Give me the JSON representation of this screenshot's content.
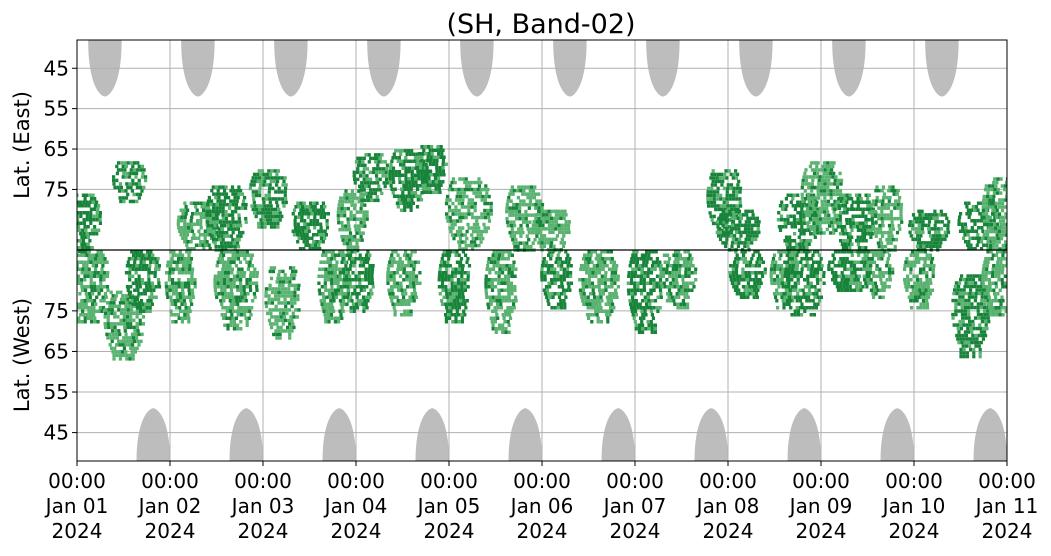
{
  "chart_data": {
    "type": "heatmap",
    "title": "(SH, Band-02)",
    "xlabel": "",
    "ylabel_top": "Lat. (East)",
    "ylabel_bottom": "Lat. (West)",
    "x_range": [
      "2024-01-01 00:00",
      "2024-01-11 00:00"
    ],
    "x_ticks": [
      {
        "time": "00:00",
        "date": "Jan 01",
        "year": "2024"
      },
      {
        "time": "00:00",
        "date": "Jan 02",
        "year": "2024"
      },
      {
        "time": "00:00",
        "date": "Jan 03",
        "year": "2024"
      },
      {
        "time": "00:00",
        "date": "Jan 04",
        "year": "2024"
      },
      {
        "time": "00:00",
        "date": "Jan 05",
        "year": "2024"
      },
      {
        "time": "00:00",
        "date": "Jan 06",
        "year": "2024"
      },
      {
        "time": "00:00",
        "date": "Jan 07",
        "year": "2024"
      },
      {
        "time": "00:00",
        "date": "Jan 08",
        "year": "2024"
      },
      {
        "time": "00:00",
        "date": "Jan 09",
        "year": "2024"
      },
      {
        "time": "00:00",
        "date": "Jan 10",
        "year": "2024"
      },
      {
        "time": "00:00",
        "date": "Jan 11",
        "year": "2024"
      }
    ],
    "y_ticks_east": [
      "45",
      "55",
      "65",
      "75"
    ],
    "y_ticks_west": [
      "75",
      "65",
      "55",
      "45"
    ],
    "y_range": {
      "east": [
        38,
        90
      ],
      "west": [
        90,
        38
      ]
    },
    "grid": true,
    "colors": {
      "background_shade": "#bdbdbd",
      "green_light": "#59b26f",
      "green_dark": "#17843a",
      "grid": "#b0b0b0",
      "divider": "#000000"
    },
    "shaded_regions_east": [
      {
        "center_day": 0.3,
        "half_width_days": 0.18,
        "min_lat": 52
      },
      {
        "center_day": 1.3,
        "half_width_days": 0.18,
        "min_lat": 52
      },
      {
        "center_day": 2.3,
        "half_width_days": 0.18,
        "min_lat": 52
      },
      {
        "center_day": 3.3,
        "half_width_days": 0.18,
        "min_lat": 52
      },
      {
        "center_day": 4.3,
        "half_width_days": 0.18,
        "min_lat": 52
      },
      {
        "center_day": 5.3,
        "half_width_days": 0.18,
        "min_lat": 52
      },
      {
        "center_day": 6.3,
        "half_width_days": 0.18,
        "min_lat": 52
      },
      {
        "center_day": 7.3,
        "half_width_days": 0.18,
        "min_lat": 52
      },
      {
        "center_day": 8.3,
        "half_width_days": 0.18,
        "min_lat": 52
      },
      {
        "center_day": 9.3,
        "half_width_days": 0.18,
        "min_lat": 52
      }
    ],
    "shaded_regions_west": [
      {
        "center_day": 0.82,
        "half_width_days": 0.18,
        "min_lat": 51
      },
      {
        "center_day": 1.82,
        "half_width_days": 0.18,
        "min_lat": 51
      },
      {
        "center_day": 2.82,
        "half_width_days": 0.18,
        "min_lat": 51
      },
      {
        "center_day": 3.82,
        "half_width_days": 0.18,
        "min_lat": 51
      },
      {
        "center_day": 4.82,
        "half_width_days": 0.18,
        "min_lat": 51
      },
      {
        "center_day": 5.82,
        "half_width_days": 0.18,
        "min_lat": 51
      },
      {
        "center_day": 6.82,
        "half_width_days": 0.18,
        "min_lat": 51
      },
      {
        "center_day": 7.82,
        "half_width_days": 0.18,
        "min_lat": 51
      },
      {
        "center_day": 8.82,
        "half_width_days": 0.18,
        "min_lat": 51
      },
      {
        "center_day": 9.82,
        "half_width_days": 0.18,
        "min_lat": 51
      }
    ],
    "green_patches": [
      {
        "day": 0.05,
        "side": "east",
        "lat_min": 76,
        "lat_max": 90,
        "shade": "dark"
      },
      {
        "day": 0.1,
        "side": "west",
        "lat_min": 72,
        "lat_max": 90,
        "shade": "light"
      },
      {
        "day": 0.55,
        "side": "east",
        "lat_min": 68,
        "lat_max": 78,
        "shade": "dark"
      },
      {
        "day": 0.5,
        "side": "west",
        "lat_min": 63,
        "lat_max": 80,
        "shade": "light"
      },
      {
        "day": 0.7,
        "side": "west",
        "lat_min": 75,
        "lat_max": 90,
        "shade": "dark"
      },
      {
        "day": 1.1,
        "side": "west",
        "lat_min": 72,
        "lat_max": 90,
        "shade": "light"
      },
      {
        "day": 1.3,
        "side": "east",
        "lat_min": 78,
        "lat_max": 90,
        "shade": "light"
      },
      {
        "day": 1.6,
        "side": "east",
        "lat_min": 74,
        "lat_max": 90,
        "shade": "dark"
      },
      {
        "day": 1.7,
        "side": "west",
        "lat_min": 71,
        "lat_max": 90,
        "shade": "light"
      },
      {
        "day": 2.05,
        "side": "east",
        "lat_min": 70,
        "lat_max": 84,
        "shade": "dark"
      },
      {
        "day": 2.2,
        "side": "west",
        "lat_min": 68,
        "lat_max": 86,
        "shade": "light"
      },
      {
        "day": 2.5,
        "side": "east",
        "lat_min": 78,
        "lat_max": 90,
        "shade": "dark"
      },
      {
        "day": 2.75,
        "side": "west",
        "lat_min": 72,
        "lat_max": 90,
        "shade": "light"
      },
      {
        "day": 2.95,
        "side": "east",
        "lat_min": 75,
        "lat_max": 90,
        "shade": "light"
      },
      {
        "day": 3.0,
        "side": "west",
        "lat_min": 75,
        "lat_max": 90,
        "shade": "dark"
      },
      {
        "day": 3.15,
        "side": "east",
        "lat_min": 66,
        "lat_max": 78,
        "shade": "dark"
      },
      {
        "day": 3.55,
        "side": "east",
        "lat_min": 65,
        "lat_max": 80,
        "shade": "dark"
      },
      {
        "day": 3.5,
        "side": "west",
        "lat_min": 74,
        "lat_max": 90,
        "shade": "light"
      },
      {
        "day": 3.8,
        "side": "east",
        "lat_min": 64,
        "lat_max": 76,
        "shade": "dark"
      },
      {
        "day": 4.05,
        "side": "west",
        "lat_min": 72,
        "lat_max": 90,
        "shade": "dark"
      },
      {
        "day": 4.2,
        "side": "east",
        "lat_min": 72,
        "lat_max": 90,
        "shade": "light"
      },
      {
        "day": 4.55,
        "side": "west",
        "lat_min": 70,
        "lat_max": 90,
        "shade": "light"
      },
      {
        "day": 4.8,
        "side": "east",
        "lat_min": 74,
        "lat_max": 90,
        "shade": "light"
      },
      {
        "day": 5.15,
        "side": "west",
        "lat_min": 76,
        "lat_max": 90,
        "shade": "dark"
      },
      {
        "day": 5.1,
        "side": "east",
        "lat_min": 80,
        "lat_max": 90,
        "shade": "light"
      },
      {
        "day": 5.6,
        "side": "west",
        "lat_min": 72,
        "lat_max": 90,
        "shade": "light"
      },
      {
        "day": 6.1,
        "side": "west",
        "lat_min": 70,
        "lat_max": 90,
        "shade": "dark"
      },
      {
        "day": 6.45,
        "side": "west",
        "lat_min": 76,
        "lat_max": 90,
        "shade": "light"
      },
      {
        "day": 6.95,
        "side": "east",
        "lat_min": 70,
        "lat_max": 86,
        "shade": "dark"
      },
      {
        "day": 7.2,
        "side": "west",
        "lat_min": 78,
        "lat_max": 90,
        "shade": "dark"
      },
      {
        "day": 7.1,
        "side": "east",
        "lat_min": 80,
        "lat_max": 90,
        "shade": "dark"
      },
      {
        "day": 7.6,
        "side": "west",
        "lat_min": 76,
        "lat_max": 90,
        "shade": "light"
      },
      {
        "day": 7.75,
        "side": "east",
        "lat_min": 76,
        "lat_max": 90,
        "shade": "dark"
      },
      {
        "day": 7.8,
        "side": "west",
        "lat_min": 74,
        "lat_max": 90,
        "shade": "dark"
      },
      {
        "day": 8.0,
        "side": "east",
        "lat_min": 68,
        "lat_max": 86,
        "shade": "light"
      },
      {
        "day": 8.35,
        "side": "east",
        "lat_min": 76,
        "lat_max": 90,
        "shade": "dark"
      },
      {
        "day": 8.3,
        "side": "west",
        "lat_min": 80,
        "lat_max": 90,
        "shade": "dark"
      },
      {
        "day": 8.7,
        "side": "east",
        "lat_min": 74,
        "lat_max": 90,
        "shade": "light"
      },
      {
        "day": 8.6,
        "side": "west",
        "lat_min": 78,
        "lat_max": 90,
        "shade": "light"
      },
      {
        "day": 9.05,
        "side": "west",
        "lat_min": 76,
        "lat_max": 90,
        "shade": "light"
      },
      {
        "day": 9.15,
        "side": "east",
        "lat_min": 80,
        "lat_max": 90,
        "shade": "dark"
      },
      {
        "day": 9.6,
        "side": "west",
        "lat_min": 64,
        "lat_max": 84,
        "shade": "dark"
      },
      {
        "day": 9.7,
        "side": "east",
        "lat_min": 78,
        "lat_max": 90,
        "shade": "dark"
      },
      {
        "day": 9.9,
        "side": "east",
        "lat_min": 72,
        "lat_max": 90,
        "shade": "light"
      },
      {
        "day": 9.9,
        "side": "west",
        "lat_min": 74,
        "lat_max": 90,
        "shade": "light"
      }
    ]
  }
}
